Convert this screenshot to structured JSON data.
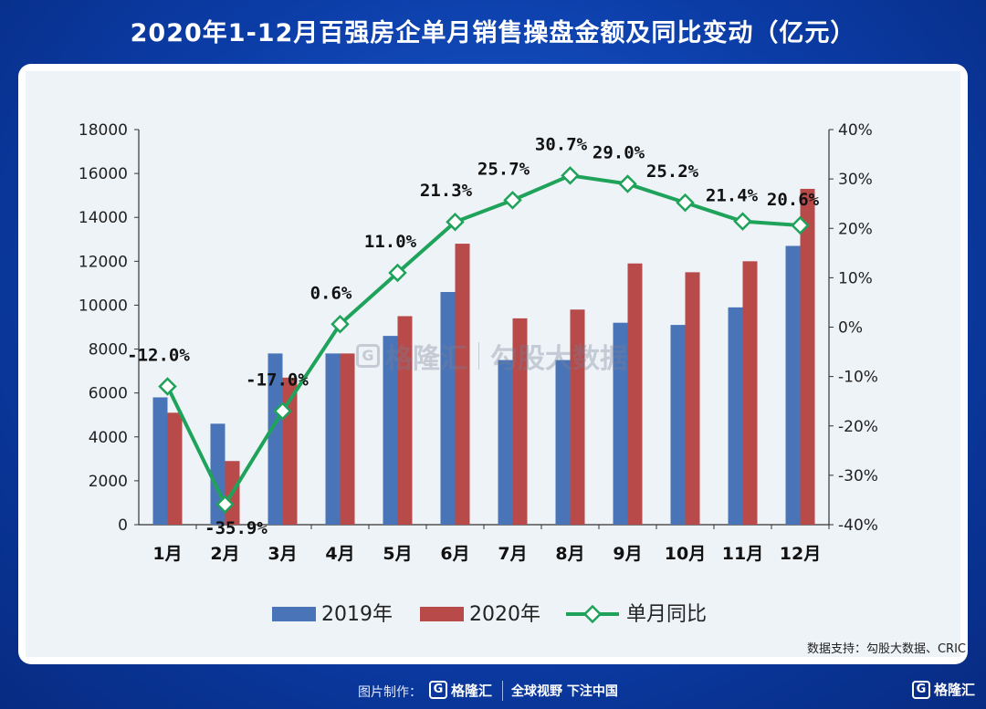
{
  "header": {
    "title": "2020年1-12月百强房企单月销售操盘金额及同比变动（亿元）"
  },
  "chart_data": {
    "type": "bar",
    "categories": [
      "1月",
      "2月",
      "3月",
      "4月",
      "5月",
      "6月",
      "7月",
      "8月",
      "9月",
      "10月",
      "11月",
      "12月"
    ],
    "series": [
      {
        "name": "2019年",
        "type": "bar",
        "axis": "left",
        "color": "#4a74b8",
        "values": [
          5800,
          4600,
          7800,
          7800,
          8600,
          10600,
          7500,
          7500,
          9200,
          9100,
          9900,
          12700
        ]
      },
      {
        "name": "2020年",
        "type": "bar",
        "axis": "left",
        "color": "#b84a4a",
        "values": [
          5100,
          2900,
          6700,
          7800,
          9500,
          12800,
          9400,
          9800,
          11900,
          11500,
          12000,
          15300
        ]
      },
      {
        "name": "单月同比",
        "type": "line",
        "axis": "right",
        "color": "#1fa35a",
        "values": [
          -12.0,
          -35.9,
          -17.0,
          0.6,
          11.0,
          21.3,
          25.7,
          30.7,
          29.0,
          25.2,
          21.4,
          20.6
        ],
        "labels": [
          "-12.0%",
          "-35.9%",
          "-17.0%",
          "0.6%",
          "11.0%",
          "21.3%",
          "25.7%",
          "30.7%",
          "29.0%",
          "25.2%",
          "21.4%",
          "20.6%"
        ]
      }
    ],
    "y_left": {
      "lim": [
        0,
        18000
      ],
      "ticks": [
        "0",
        "2000",
        "4000",
        "6000",
        "8000",
        "10000",
        "12000",
        "14000",
        "16000",
        "18000"
      ]
    },
    "y_right": {
      "lim": [
        -40,
        40
      ],
      "ticks": [
        "-40%",
        "-30%",
        "-20%",
        "-10%",
        "0%",
        "10%",
        "20%",
        "30%",
        "40%"
      ]
    },
    "grid": false,
    "legend_position": "bottom"
  },
  "watermark": {
    "brand": "格隆汇",
    "text": "勾股大数据"
  },
  "source": {
    "text": "数据支持：勾股大数据、CRIC"
  },
  "footer": {
    "credit_label": "图片制作：",
    "brand": "格隆汇",
    "slogan": "全球视野 下注中国",
    "corner_brand": "格隆汇"
  },
  "colors": {
    "background": "#0b3ca6",
    "panel": "#ffffff",
    "plot": "#eef3f8"
  }
}
